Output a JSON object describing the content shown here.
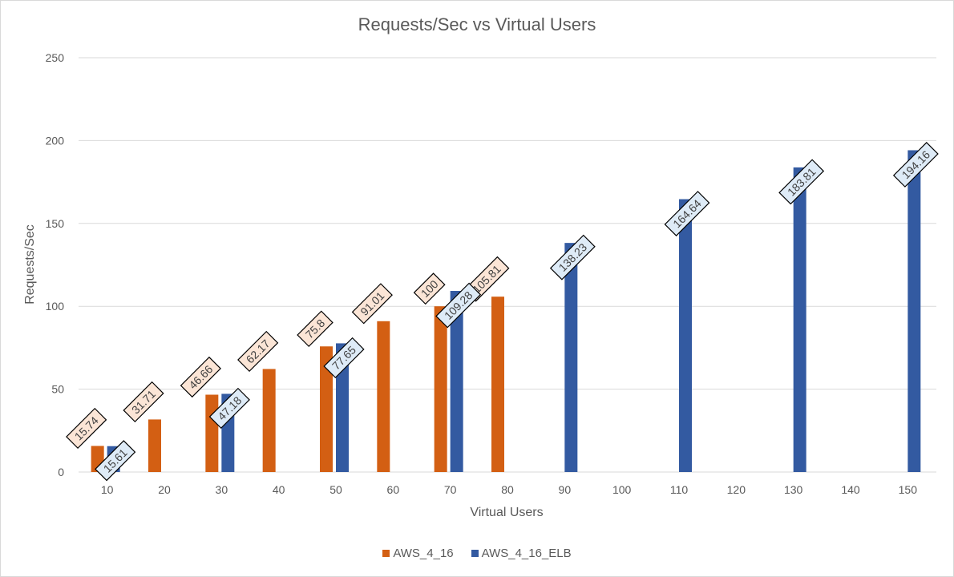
{
  "chart_data": {
    "type": "bar",
    "title": "Requests/Sec vs Virtual Users",
    "xlabel": "Virtual Users",
    "ylabel": "Requests/Sec",
    "ylim": [
      0,
      250
    ],
    "yticks": [
      0,
      50,
      100,
      150,
      200,
      250
    ],
    "grid": true,
    "legend_position": "bottom",
    "categories": [
      "10",
      "20",
      "30",
      "40",
      "50",
      "60",
      "70",
      "80",
      "90",
      "100",
      "110",
      "120",
      "130",
      "140",
      "150"
    ],
    "series": [
      {
        "name": "AWS_4_16",
        "color": "#d35f13",
        "label_fill": "#fbe5d6",
        "values": [
          15.74,
          31.71,
          46.66,
          62.17,
          75.8,
          91.01,
          100,
          105.81,
          null,
          null,
          null,
          null,
          null,
          null,
          null
        ]
      },
      {
        "name": "AWS_4_16_ELB",
        "color": "#335aa1",
        "label_fill": "#deebf7",
        "values": [
          15.61,
          null,
          47.18,
          null,
          77.65,
          null,
          109.28,
          null,
          138.23,
          null,
          164.64,
          null,
          183.81,
          null,
          194.16
        ]
      }
    ]
  }
}
